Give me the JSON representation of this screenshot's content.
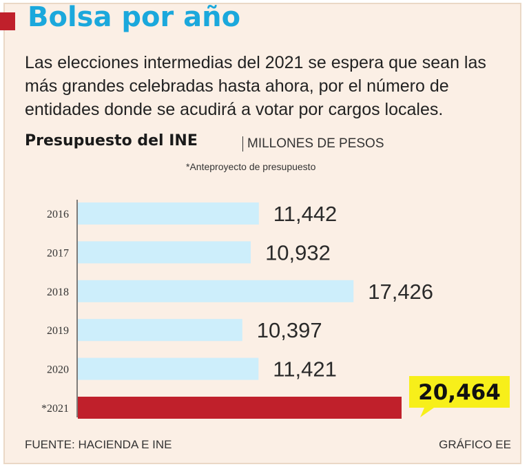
{
  "header": {
    "title": "Bolsa por año",
    "subtitle": "Las elecciones intermedias del 2021 se espera que sean las más grandes celebradas hasta ahora, por el número de entidades donde se acudirá a votar por cargos locales."
  },
  "chart_data": {
    "type": "bar",
    "orientation": "horizontal",
    "title": "Presupuesto del INE",
    "unit": "MILLONES DE PESOS",
    "note": "*Anteproyecto de presupuesto",
    "categories": [
      "2016",
      "2017",
      "2018",
      "2019",
      "2020",
      "*2021"
    ],
    "values": [
      11442,
      10932,
      17426,
      10397,
      11421,
      20464
    ],
    "value_labels": [
      "11,442",
      "10,932",
      "17,426",
      "10,397",
      "11,421",
      "20,464"
    ],
    "highlight_index": 5,
    "xlim": [
      0,
      20464
    ],
    "grid": false
  },
  "footer": {
    "source": "FUENTE: HACIENDA E INE",
    "credit": "GRÁFICO EE"
  },
  "colors": {
    "title": "#1ba8dc",
    "accent": "#c0202b",
    "bar": "#cdeefb",
    "highlight_bar": "#c0202b",
    "callout": "#f7ef1a",
    "background": "#fbefe5"
  }
}
